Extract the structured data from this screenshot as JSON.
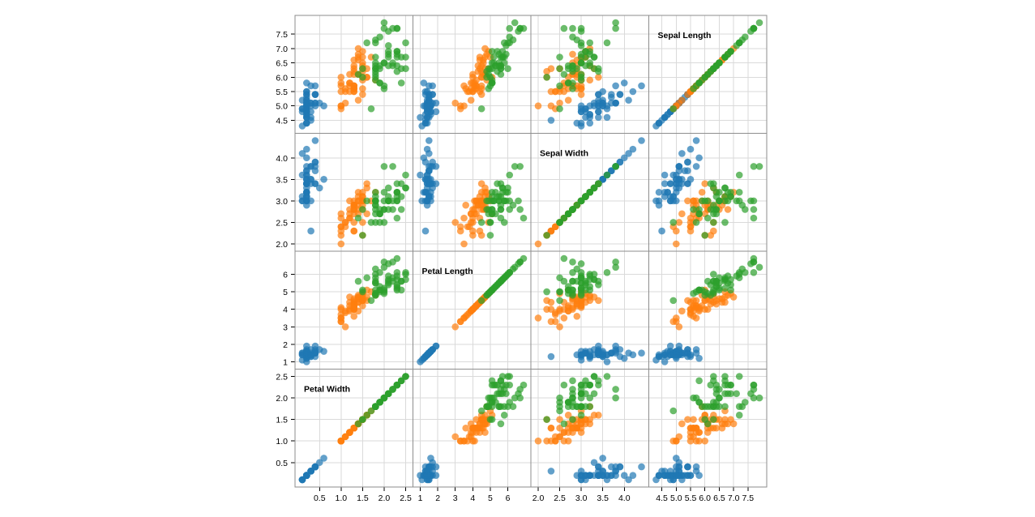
{
  "chart_data": {
    "type": "scatter",
    "title": "",
    "variables": [
      {
        "key": "petal_width",
        "label": "Petal Width",
        "domain": [
          0.1,
          2.5
        ],
        "ticks": [
          0.5,
          1.0,
          1.5,
          2.0,
          2.5
        ],
        "x_tick_labels": [
          "0.5",
          "1.0",
          "1.5",
          "2.0",
          "2.5"
        ],
        "y_tick_labels": [
          "0.5",
          "1.0",
          "1.5",
          "2.0",
          "2.5"
        ]
      },
      {
        "key": "petal_length",
        "label": "Petal Length",
        "domain": [
          1.0,
          6.9
        ],
        "ticks": [
          1,
          2,
          3,
          4,
          5,
          6
        ],
        "x_tick_labels": [
          "1",
          "2",
          "3",
          "4",
          "5",
          "6"
        ],
        "y_tick_labels": [
          "1",
          "2",
          "3",
          "4",
          "5",
          "6"
        ]
      },
      {
        "key": "sepal_width",
        "label": "Sepal Width",
        "domain": [
          2.0,
          4.4
        ],
        "ticks": [
          2.0,
          2.5,
          3.0,
          3.5,
          4.0
        ],
        "x_tick_labels": [
          "2.0",
          "2.5",
          "3.0",
          "3.5",
          "4.0"
        ],
        "y_tick_labels": [
          "2.0",
          "2.5",
          "3.0",
          "3.5",
          "4.0"
        ]
      },
      {
        "key": "sepal_length",
        "label": "Sepal Length",
        "domain": [
          4.3,
          7.9
        ],
        "ticks": [
          4.5,
          5.0,
          5.5,
          6.0,
          6.5,
          7.0,
          7.5
        ],
        "x_tick_labels": [
          "4.5",
          "5.0",
          "5.5",
          "6.0",
          "6.5",
          "7.0",
          "7.5"
        ],
        "y_tick_labels": [
          "4.5",
          "5.0",
          "5.5",
          "6.0",
          "6.5",
          "7.0",
          "7.5"
        ]
      }
    ],
    "row_order": [
      "sepal_length",
      "sepal_width",
      "petal_length",
      "petal_width"
    ],
    "col_order": [
      "petal_width",
      "petal_length",
      "sepal_width",
      "sepal_length"
    ],
    "grid": true,
    "legend": "none",
    "series": [
      {
        "color": "#1f77b4",
        "points": [
          [
            5.1,
            3.5,
            1.4,
            0.2
          ],
          [
            4.9,
            3.0,
            1.4,
            0.2
          ],
          [
            4.7,
            3.2,
            1.3,
            0.2
          ],
          [
            4.6,
            3.1,
            1.5,
            0.2
          ],
          [
            5.0,
            3.6,
            1.4,
            0.2
          ],
          [
            5.4,
            3.9,
            1.7,
            0.4
          ],
          [
            4.6,
            3.4,
            1.4,
            0.3
          ],
          [
            5.0,
            3.4,
            1.5,
            0.2
          ],
          [
            4.4,
            2.9,
            1.4,
            0.2
          ],
          [
            4.9,
            3.1,
            1.5,
            0.1
          ],
          [
            5.4,
            3.7,
            1.5,
            0.2
          ],
          [
            4.8,
            3.4,
            1.6,
            0.2
          ],
          [
            4.8,
            3.0,
            1.4,
            0.1
          ],
          [
            4.3,
            3.0,
            1.1,
            0.1
          ],
          [
            5.8,
            4.0,
            1.2,
            0.2
          ],
          [
            5.7,
            4.4,
            1.5,
            0.4
          ],
          [
            5.4,
            3.9,
            1.3,
            0.4
          ],
          [
            5.1,
            3.5,
            1.4,
            0.3
          ],
          [
            5.7,
            3.8,
            1.7,
            0.3
          ],
          [
            5.1,
            3.8,
            1.5,
            0.3
          ],
          [
            5.4,
            3.4,
            1.7,
            0.2
          ],
          [
            5.1,
            3.7,
            1.5,
            0.4
          ],
          [
            4.6,
            3.6,
            1.0,
            0.2
          ],
          [
            5.1,
            3.3,
            1.7,
            0.5
          ],
          [
            4.8,
            3.4,
            1.9,
            0.2
          ],
          [
            5.0,
            3.0,
            1.6,
            0.2
          ],
          [
            5.0,
            3.4,
            1.6,
            0.4
          ],
          [
            5.2,
            3.5,
            1.5,
            0.2
          ],
          [
            5.2,
            3.4,
            1.4,
            0.2
          ],
          [
            4.7,
            3.2,
            1.6,
            0.2
          ],
          [
            4.8,
            3.1,
            1.6,
            0.2
          ],
          [
            5.4,
            3.4,
            1.5,
            0.4
          ],
          [
            5.2,
            4.1,
            1.5,
            0.1
          ],
          [
            5.5,
            4.2,
            1.4,
            0.2
          ],
          [
            4.9,
            3.1,
            1.5,
            0.2
          ],
          [
            5.0,
            3.2,
            1.2,
            0.2
          ],
          [
            5.5,
            3.5,
            1.3,
            0.2
          ],
          [
            4.9,
            3.6,
            1.4,
            0.1
          ],
          [
            4.4,
            3.0,
            1.3,
            0.2
          ],
          [
            5.1,
            3.4,
            1.5,
            0.2
          ],
          [
            5.0,
            3.5,
            1.3,
            0.3
          ],
          [
            4.5,
            2.3,
            1.3,
            0.3
          ],
          [
            4.4,
            3.2,
            1.3,
            0.2
          ],
          [
            5.0,
            3.5,
            1.6,
            0.6
          ],
          [
            5.1,
            3.8,
            1.9,
            0.4
          ],
          [
            4.8,
            3.0,
            1.4,
            0.3
          ],
          [
            5.1,
            3.8,
            1.6,
            0.2
          ],
          [
            4.6,
            3.2,
            1.4,
            0.2
          ],
          [
            5.3,
            3.7,
            1.5,
            0.2
          ],
          [
            5.0,
            3.3,
            1.4,
            0.2
          ]
        ]
      },
      {
        "color": "#ff7f0e",
        "points": [
          [
            7.0,
            3.2,
            4.7,
            1.4
          ],
          [
            6.4,
            3.2,
            4.5,
            1.5
          ],
          [
            6.9,
            3.1,
            4.9,
            1.5
          ],
          [
            5.5,
            2.3,
            4.0,
            1.3
          ],
          [
            6.5,
            2.8,
            4.6,
            1.5
          ],
          [
            5.7,
            2.8,
            4.5,
            1.3
          ],
          [
            6.3,
            3.3,
            4.7,
            1.6
          ],
          [
            4.9,
            2.4,
            3.3,
            1.0
          ],
          [
            6.6,
            2.9,
            4.6,
            1.3
          ],
          [
            5.2,
            2.7,
            3.9,
            1.4
          ],
          [
            5.0,
            2.0,
            3.5,
            1.0
          ],
          [
            5.9,
            3.0,
            4.2,
            1.5
          ],
          [
            6.0,
            2.2,
            4.0,
            1.0
          ],
          [
            6.1,
            2.9,
            4.7,
            1.4
          ],
          [
            5.6,
            2.9,
            3.6,
            1.3
          ],
          [
            6.7,
            3.1,
            4.4,
            1.4
          ],
          [
            5.6,
            3.0,
            4.5,
            1.5
          ],
          [
            5.8,
            2.7,
            4.1,
            1.0
          ],
          [
            6.2,
            2.2,
            4.5,
            1.5
          ],
          [
            5.6,
            2.5,
            3.9,
            1.1
          ],
          [
            5.9,
            3.2,
            4.8,
            1.8
          ],
          [
            6.1,
            2.8,
            4.0,
            1.3
          ],
          [
            6.3,
            2.5,
            4.9,
            1.5
          ],
          [
            6.1,
            2.8,
            4.7,
            1.2
          ],
          [
            6.4,
            2.9,
            4.3,
            1.3
          ],
          [
            6.6,
            3.0,
            4.4,
            1.4
          ],
          [
            6.8,
            2.8,
            4.8,
            1.4
          ],
          [
            6.7,
            3.0,
            5.0,
            1.7
          ],
          [
            6.0,
            2.9,
            4.5,
            1.5
          ],
          [
            5.7,
            2.6,
            3.5,
            1.0
          ],
          [
            5.5,
            2.4,
            3.8,
            1.1
          ],
          [
            5.5,
            2.4,
            3.7,
            1.0
          ],
          [
            5.8,
            2.7,
            3.9,
            1.2
          ],
          [
            6.0,
            2.7,
            5.1,
            1.6
          ],
          [
            5.4,
            3.0,
            4.5,
            1.5
          ],
          [
            6.0,
            3.4,
            4.5,
            1.6
          ],
          [
            6.7,
            3.1,
            4.7,
            1.5
          ],
          [
            6.3,
            2.3,
            4.4,
            1.3
          ],
          [
            5.6,
            3.0,
            4.1,
            1.3
          ],
          [
            5.5,
            2.5,
            4.0,
            1.3
          ],
          [
            5.5,
            2.6,
            4.4,
            1.2
          ],
          [
            6.1,
            3.0,
            4.6,
            1.4
          ],
          [
            5.8,
            2.6,
            4.0,
            1.2
          ],
          [
            5.0,
            2.3,
            3.3,
            1.0
          ],
          [
            5.6,
            2.7,
            4.2,
            1.3
          ],
          [
            5.7,
            3.0,
            4.2,
            1.2
          ],
          [
            5.7,
            2.9,
            4.2,
            1.3
          ],
          [
            6.2,
            2.9,
            4.3,
            1.3
          ],
          [
            5.1,
            2.5,
            3.0,
            1.1
          ],
          [
            5.7,
            2.8,
            4.1,
            1.3
          ]
        ]
      },
      {
        "color": "#2ca02c",
        "points": [
          [
            6.3,
            3.3,
            6.0,
            2.5
          ],
          [
            5.8,
            2.7,
            5.1,
            1.9
          ],
          [
            7.1,
            3.0,
            5.9,
            2.1
          ],
          [
            6.3,
            2.9,
            5.6,
            1.8
          ],
          [
            6.5,
            3.0,
            5.8,
            2.2
          ],
          [
            7.6,
            3.0,
            6.6,
            2.1
          ],
          [
            4.9,
            2.5,
            4.5,
            1.7
          ],
          [
            7.3,
            2.9,
            6.3,
            1.8
          ],
          [
            6.7,
            2.5,
            5.8,
            1.8
          ],
          [
            7.2,
            3.6,
            6.1,
            2.5
          ],
          [
            6.5,
            3.2,
            5.1,
            2.0
          ],
          [
            6.4,
            2.7,
            5.3,
            1.9
          ],
          [
            6.8,
            3.0,
            5.5,
            2.1
          ],
          [
            5.7,
            2.5,
            5.0,
            2.0
          ],
          [
            5.8,
            2.8,
            5.1,
            2.4
          ],
          [
            6.4,
            3.2,
            5.3,
            2.3
          ],
          [
            6.5,
            3.0,
            5.5,
            1.8
          ],
          [
            7.7,
            3.8,
            6.7,
            2.2
          ],
          [
            7.7,
            2.6,
            6.9,
            2.3
          ],
          [
            6.0,
            2.2,
            5.0,
            1.5
          ],
          [
            6.9,
            3.2,
            5.7,
            2.3
          ],
          [
            5.6,
            2.8,
            4.9,
            2.0
          ],
          [
            7.7,
            2.8,
            6.7,
            2.0
          ],
          [
            6.3,
            2.7,
            4.9,
            1.8
          ],
          [
            6.7,
            3.3,
            5.7,
            2.1
          ],
          [
            7.2,
            3.2,
            6.0,
            1.8
          ],
          [
            6.2,
            2.8,
            4.8,
            1.8
          ],
          [
            6.1,
            3.0,
            4.9,
            1.8
          ],
          [
            6.4,
            2.8,
            5.6,
            2.1
          ],
          [
            7.2,
            3.0,
            5.8,
            1.6
          ],
          [
            7.4,
            2.8,
            6.1,
            1.9
          ],
          [
            7.9,
            3.8,
            6.4,
            2.0
          ],
          [
            6.4,
            2.8,
            5.6,
            2.2
          ],
          [
            6.3,
            2.8,
            5.1,
            1.5
          ],
          [
            6.1,
            2.6,
            5.6,
            1.4
          ],
          [
            7.7,
            3.0,
            6.1,
            2.3
          ],
          [
            6.3,
            3.4,
            5.6,
            2.4
          ],
          [
            6.4,
            3.1,
            5.5,
            1.8
          ],
          [
            6.0,
            3.0,
            4.8,
            1.8
          ],
          [
            6.9,
            3.1,
            5.4,
            2.1
          ],
          [
            6.7,
            3.1,
            5.6,
            2.4
          ],
          [
            6.9,
            3.1,
            5.1,
            2.3
          ],
          [
            5.8,
            2.7,
            5.1,
            1.9
          ],
          [
            6.8,
            3.2,
            5.9,
            2.3
          ],
          [
            6.7,
            3.3,
            5.7,
            2.5
          ],
          [
            6.7,
            3.0,
            5.2,
            2.3
          ],
          [
            6.3,
            2.5,
            5.0,
            1.9
          ],
          [
            6.5,
            3.0,
            5.2,
            2.0
          ],
          [
            6.2,
            3.4,
            5.4,
            2.3
          ],
          [
            5.9,
            3.0,
            5.1,
            1.8
          ]
        ]
      }
    ]
  }
}
